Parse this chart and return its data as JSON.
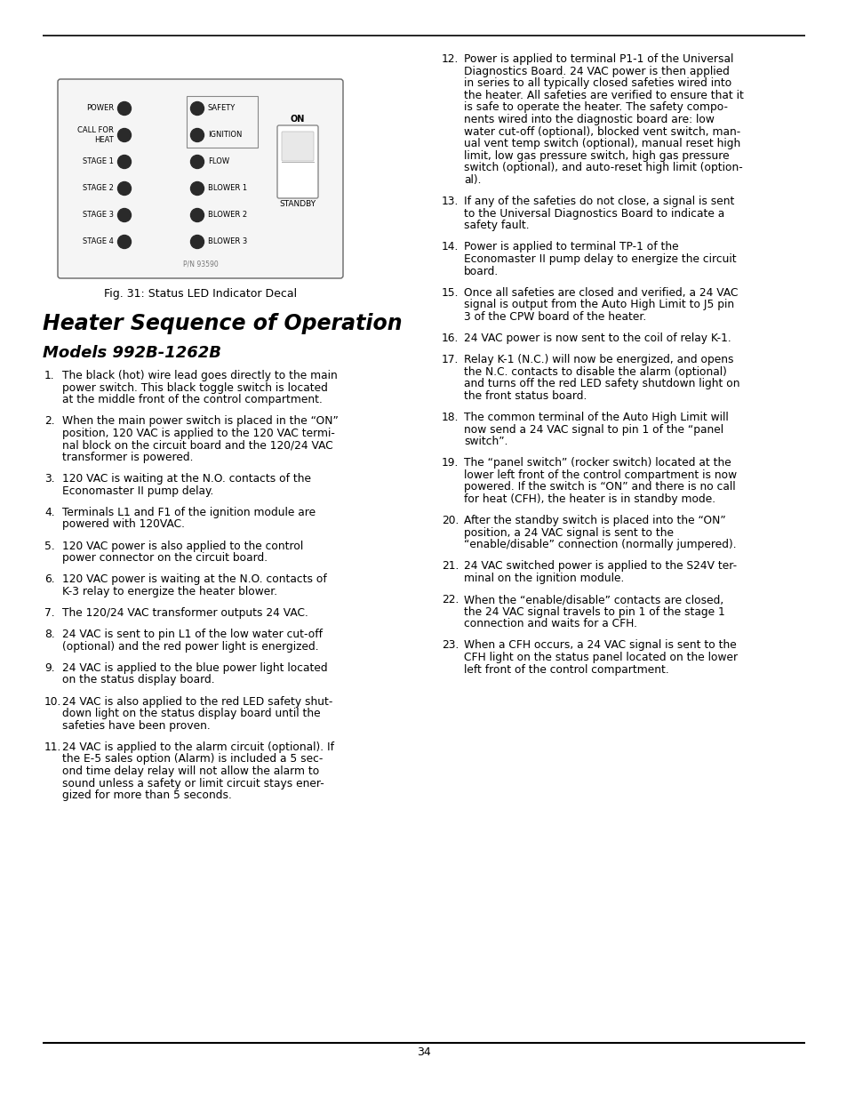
{
  "page_bg": "#ffffff",
  "page_number": "34",
  "section_title": "Heater Sequence of Operation",
  "subsection_title": "Models 992B-1262B",
  "fig_caption": "Fig. 31: Status LED Indicator Decal",
  "left_items": [
    {
      "num": "1.",
      "text": "The black (hot) wire lead goes directly to the main\npower switch. This black toggle switch is located\nat the middle front of the control compartment."
    },
    {
      "num": "2.",
      "text": "When the main power switch is placed in the “ON”\nposition, 120 VAC is applied to the 120 VAC termi-\nnal block on the circuit board and the 120/24 VAC\ntransformer is powered."
    },
    {
      "num": "3.",
      "text": "120 VAC is waiting at the N.O. contacts of the\nEconomaster II pump delay."
    },
    {
      "num": "4.",
      "text": "Terminals L1 and F1 of the ignition module are\npowered with 120VAC."
    },
    {
      "num": "5.",
      "text": "120 VAC power is also applied to the control\npower connector on the circuit board."
    },
    {
      "num": "6.",
      "text": "120 VAC power is waiting at the N.O. contacts of\nK-3 relay to energize the heater blower."
    },
    {
      "num": "7.",
      "text": "The 120/24 VAC transformer outputs 24 VAC."
    },
    {
      "num": "8.",
      "text": "24 VAC is sent to pin L1 of the low water cut-off\n(optional) and the red power light is energized."
    },
    {
      "num": "9.",
      "text": "24 VAC is applied to the blue power light located\non the status display board."
    },
    {
      "num": "10.",
      "text": "24 VAC is also applied to the red LED safety shut-\ndown light on the status display board until the\nsafeties have been proven."
    },
    {
      "num": "11.",
      "text": "24 VAC is applied to the alarm circuit (optional). If\nthe E-5 sales option (Alarm) is included a 5 sec-\nond time delay relay will not allow the alarm to\nsound unless a safety or limit circuit stays ener-\ngized for more than 5 seconds."
    }
  ],
  "right_items": [
    {
      "num": "12.",
      "text": "Power is applied to terminal P1-1 of the Universal\nDiagnostics Board. 24 VAC power is then applied\nin series to all typically closed safeties wired into\nthe heater. All safeties are verified to ensure that it\nis safe to operate the heater. The safety compo-\nnents wired into the diagnostic board are: low\nwater cut-off (optional), blocked vent switch, man-\nual vent temp switch (optional), manual reset high\nlimit, low gas pressure switch, high gas pressure\nswitch (optional), and auto-reset high limit (option-\nal)."
    },
    {
      "num": "13.",
      "text": "If any of the safeties do not close, a signal is sent\nto the Universal Diagnostics Board to indicate a\nsafety fault."
    },
    {
      "num": "14.",
      "text": "Power is applied to terminal TP-1 of the\nEconomaster II pump delay to energize the circuit\nboard."
    },
    {
      "num": "15.",
      "text": "Once all safeties are closed and verified, a 24 VAC\nsignal is output from the Auto High Limit to J5 pin\n3 of the CPW board of the heater."
    },
    {
      "num": "16.",
      "text": "24 VAC power is now sent to the coil of relay K-1."
    },
    {
      "num": "17.",
      "text": "Relay K-1 (N.C.) will now be energized, and opens\nthe N.C. contacts to disable the alarm (optional)\nand turns off the red LED safety shutdown light on\nthe front status board."
    },
    {
      "num": "18.",
      "text": "The common terminal of the Auto High Limit will\nnow send a 24 VAC signal to pin 1 of the “panel\nswitch”."
    },
    {
      "num": "19.",
      "text": "The “panel switch” (rocker switch) located at the\nlower left front of the control compartment is now\npowered. If the switch is “ON” and there is no call\nfor heat (CFH), the heater is in standby mode."
    },
    {
      "num": "20.",
      "text": "After the standby switch is placed into the “ON”\nposition, a 24 VAC signal is sent to the\n“enable/disable” connection (normally jumpered)."
    },
    {
      "num": "21.",
      "text": "24 VAC switched power is applied to the S24V ter-\nminal on the ignition module."
    },
    {
      "num": "22.",
      "text": "When the “enable/disable” contacts are closed,\nthe 24 VAC signal travels to pin 1 of the stage 1\nconnection and waits for a CFH."
    },
    {
      "num": "23.",
      "text": "When a CFH occurs, a 24 VAC signal is sent to the\nCFH light on the status panel located on the lower\nleft front of the control compartment."
    }
  ],
  "diagram": {
    "left_labels": [
      "POWER",
      "CALL FOR\nHEAT",
      "STAGE 1",
      "STAGE 2",
      "STAGE 3",
      "STAGE 4"
    ],
    "right_labels": [
      "SAFETY",
      "IGNITION",
      "FLOW",
      "BLOWER 1",
      "BLOWER 2",
      "BLOWER 3"
    ],
    "part_number": "P/N 93590"
  }
}
